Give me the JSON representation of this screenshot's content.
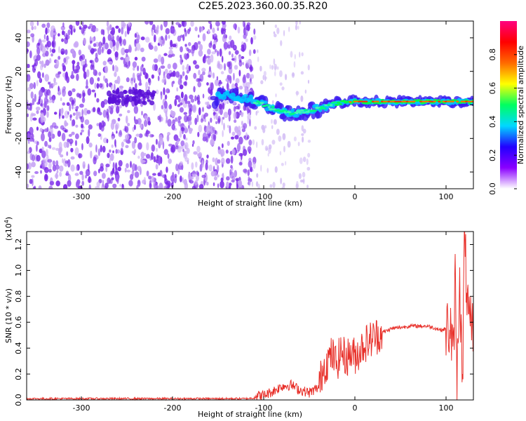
{
  "figure": {
    "title": "C2E5.2023.360.00.35.R20"
  },
  "chart_data": [
    {
      "type": "heatmap",
      "name": "spectrogram",
      "xlabel": "Height of straight line (km)",
      "ylabel": "Frequency (Hz)",
      "xlim": [
        -360,
        130
      ],
      "ylim": [
        -50,
        50
      ],
      "xticks": [
        -300,
        -200,
        -100,
        0,
        100
      ],
      "yticks": [
        -40,
        -20,
        0,
        20,
        40
      ],
      "colorbar": {
        "label": "Normalized spectral amplitude",
        "range": [
          0,
          1
        ],
        "ticks": [
          "0.0",
          "0.2",
          "0.4",
          "0.6",
          "0.8"
        ],
        "colors": [
          "#ffffff",
          "#8a00ff",
          "#2200ff",
          "#00d8ff",
          "#00ff60",
          "#ffff00",
          "#ff6a00",
          "#ff0000",
          "#ff0080"
        ]
      },
      "noise_region": [
        -360,
        -120
      ],
      "noise_color": "#7b2be8",
      "signal_track": [
        {
          "x": -150,
          "f": 6
        },
        {
          "x": -120,
          "f": 4
        },
        {
          "x": -100,
          "f": 0
        },
        {
          "x": -85,
          "f": -3
        },
        {
          "x": -70,
          "f": -5
        },
        {
          "x": -55,
          "f": -4
        },
        {
          "x": -40,
          "f": -2
        },
        {
          "x": -20,
          "f": 1
        },
        {
          "x": 0,
          "f": 2
        },
        {
          "x": 50,
          "f": 2
        },
        {
          "x": 100,
          "f": 2
        },
        {
          "x": 130,
          "f": 2
        }
      ],
      "band_feature": {
        "x_start": -270,
        "x_end": -220,
        "f": 5
      }
    },
    {
      "type": "line",
      "name": "snr",
      "xlabel": "Height of straight line (km)",
      "ylabel": "SNR (10 * v/v)",
      "multiplier": "(x10",
      "multiplier_exp": "4",
      "multiplier_close": ")",
      "xlim": [
        -360,
        130
      ],
      "ylim": [
        0,
        1.3
      ],
      "xticks": [
        -300,
        -200,
        -100,
        0,
        100
      ],
      "yticks": [
        "0.0",
        "0.2",
        "0.4",
        "0.6",
        "0.8",
        "1.0",
        "1.2"
      ],
      "color": "#e8302a",
      "series": [
        {
          "values_x": [
            -360,
            -300,
            -200,
            -150,
            -120,
            -100,
            -90,
            -80,
            -70,
            -60,
            -50,
            -40,
            -35,
            -30,
            -25,
            -20,
            -15,
            -10,
            -5,
            0,
            5,
            10,
            20,
            30,
            40,
            50,
            60,
            70,
            80,
            90,
            95,
            100,
            105,
            108,
            110,
            112,
            115,
            118,
            120,
            125,
            130
          ],
          "values_y": [
            0.01,
            0.01,
            0.01,
            0.01,
            0.01,
            0.02,
            0.05,
            0.09,
            0.1,
            0.06,
            0.04,
            0.08,
            0.25,
            0.3,
            0.35,
            0.28,
            0.38,
            0.32,
            0.36,
            0.34,
            0.38,
            0.43,
            0.48,
            0.52,
            0.55,
            0.56,
            0.57,
            0.57,
            0.57,
            0.55,
            0.54,
            0.55,
            0.55,
            0.3,
            0.95,
            0.15,
            1.0,
            0.05,
            1.25,
            0.55,
            0.55
          ]
        }
      ]
    }
  ]
}
